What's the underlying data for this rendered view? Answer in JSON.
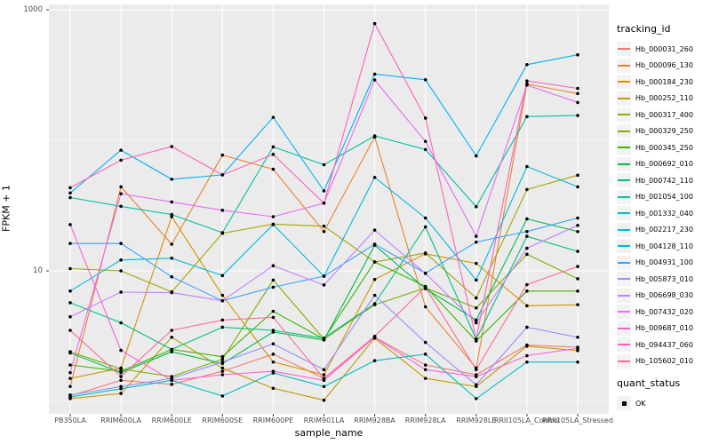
{
  "figure": {
    "y_axis_title": "FPKM + 1",
    "x_axis_title": "sample_name",
    "legend_tracking_title": "tracking_id",
    "legend_quant_title": "quant_status",
    "legend_quant_ok_label": "OK",
    "colors": {
      "panel_bg": "#EBEBEB",
      "grid": "#FFFFFF",
      "axis_text": "#4D4D4D",
      "tick_mark": "#333333",
      "point": "#000000",
      "legend_key_bg": "#F2F2F2"
    }
  },
  "chart_data": {
    "type": "line",
    "title": "",
    "xlabel": "sample_name",
    "ylabel": "FPKM + 1",
    "y_scale": "log10",
    "ylim": [
      0.8,
      1100
    ],
    "y_major_breaks": [
      10,
      1000
    ],
    "y_minor_breaks": [
      1,
      100
    ],
    "y_tick_labels": [
      "10",
      "1000"
    ],
    "grid": true,
    "legend_position": "right",
    "point_marker": "black dot (quant_status = OK)",
    "categories": [
      "PB350LA",
      "RRIM600LA",
      "RRIM600LE",
      "RRIM600SE",
      "RRIM600PE",
      "RRIM901LA",
      "RRIM928BA",
      "RRIM928LA",
      "RRIM928LE",
      "RRII105LA_Control",
      "RRII105LA_Stressed"
    ],
    "series": [
      {
        "name": "Hb_000031_260",
        "color": "#F8766D",
        "values": [
          1.1,
          1.45,
          1.35,
          1.7,
          2.3,
          1.5,
          3.1,
          1.9,
          1.6,
          2.7,
          2.6
        ]
      },
      {
        "name": "Hb_000096_130",
        "color": "#EA8331",
        "values": [
          1.3,
          44,
          16,
          77,
          60,
          20,
          106,
          5.3,
          1.8,
          270,
          228
        ]
      },
      {
        "name": "Hb_000184_230",
        "color": "#D89000",
        "values": [
          1.5,
          1.8,
          26,
          6.5,
          2.0,
          1.6,
          8.6,
          13.5,
          11.4,
          5.4,
          5.5
        ]
      },
      {
        "name": "Hb_000252_110",
        "color": "#C09B00",
        "values": [
          1.05,
          1.15,
          3.1,
          1.8,
          1.26,
          1.02,
          3.05,
          1.5,
          1.3,
          2.65,
          2.45
        ]
      },
      {
        "name": "Hb_000317_400",
        "color": "#A3A500",
        "values": [
          10.4,
          10.0,
          6.9,
          19.4,
          22.8,
          22.0,
          11.7,
          13.7,
          6.2,
          42,
          54
        ]
      },
      {
        "name": "Hb_000329_250",
        "color": "#7CAE00",
        "values": [
          2.4,
          1.77,
          1.55,
          2.1,
          8.5,
          3.0,
          5.5,
          7.4,
          5.2,
          13.4,
          8.7
        ]
      },
      {
        "name": "Hb_000345_250",
        "color": "#39B600",
        "values": [
          1.9,
          1.7,
          2.5,
          2.2,
          4.9,
          3.0,
          11.7,
          7.6,
          2.9,
          7.0,
          7.0
        ]
      },
      {
        "name": "Hb_000692_010",
        "color": "#00BB4E",
        "values": [
          2.35,
          1.66,
          2.4,
          1.95,
          3.4,
          2.95,
          15.7,
          7.3,
          4.2,
          25,
          20
        ]
      },
      {
        "name": "Hb_000742_110",
        "color": "#00BF7D",
        "values": [
          5.7,
          4.0,
          2.5,
          3.7,
          3.5,
          3.05,
          5.6,
          21.7,
          3.0,
          18.4,
          14.1
        ]
      },
      {
        "name": "Hb_001054_100",
        "color": "#00C1A3",
        "values": [
          36.4,
          31.2,
          27,
          19.6,
          89,
          65,
          108,
          85,
          31,
          152,
          155
        ]
      },
      {
        "name": "Hb_001332_040",
        "color": "#00BFC4",
        "values": [
          1.08,
          1.25,
          1.45,
          1.1,
          1.65,
          1.3,
          2.05,
          2.3,
          1.05,
          2.0,
          2.0
        ]
      },
      {
        "name": "Hb_002217_230",
        "color": "#00BAE0",
        "values": [
          7.0,
          12.1,
          12.5,
          9.2,
          22.6,
          9.1,
          52,
          25.4,
          8.5,
          63,
          44
        ]
      },
      {
        "name": "Hb_004128_110",
        "color": "#00B0F6",
        "values": [
          39.5,
          84,
          50.3,
          54.4,
          150,
          41,
          321,
          291,
          76,
          380,
          452
        ]
      },
      {
        "name": "Hb_004931_100",
        "color": "#35A2FF",
        "values": [
          16.2,
          16.2,
          9.0,
          5.9,
          7.5,
          9.1,
          16.0,
          9.6,
          16.6,
          20,
          25.4
        ]
      },
      {
        "name": "Hb_005873_010",
        "color": "#9590FF",
        "values": [
          1.12,
          1.3,
          1.5,
          2.0,
          2.76,
          1.75,
          6.5,
          2.83,
          1.34,
          3.7,
          3.1
        ]
      },
      {
        "name": "Hb_006698_030",
        "color": "#C77CFF",
        "values": [
          4.45,
          6.87,
          6.8,
          5.9,
          10.95,
          7.8,
          20.5,
          9.55,
          4.0,
          14.9,
          22.3
        ]
      },
      {
        "name": "Hb_007432_020",
        "color": "#E76BF3",
        "values": [
          1.66,
          39,
          33.7,
          29.1,
          26,
          33,
          290,
          98,
          18.4,
          265,
          195
        ]
      },
      {
        "name": "Hb_009687_010",
        "color": "#FA62DB",
        "values": [
          22.6,
          2.46,
          1.45,
          1.6,
          1.7,
          1.45,
          3.1,
          1.75,
          1.55,
          2.24,
          2.55
        ]
      },
      {
        "name": "Hb_094437_060",
        "color": "#FF62BC",
        "values": [
          43.3,
          70.4,
          89.6,
          54.4,
          78,
          33,
          784,
          148,
          3.0,
          285,
          250
        ]
      },
      {
        "name": "Hb_105602_010",
        "color": "#FF6A98",
        "values": [
          3.5,
          1.55,
          3.5,
          4.2,
          4.4,
          1.5,
          3.15,
          7.5,
          1.75,
          7.84,
          10.8
        ]
      }
    ]
  }
}
